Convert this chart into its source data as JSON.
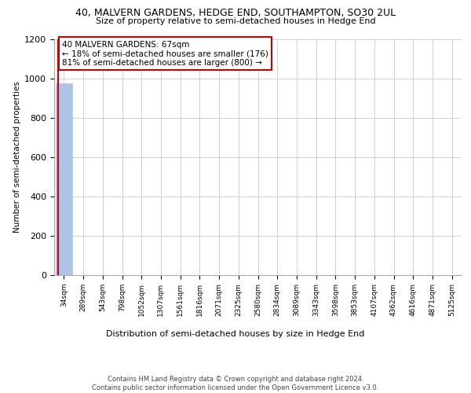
{
  "title_line1": "40, MALVERN GARDENS, HEDGE END, SOUTHAMPTON, SO30 2UL",
  "title_line2": "Size of property relative to semi-detached houses in Hedge End",
  "xlabel": "Distribution of semi-detached houses by size in Hedge End",
  "ylabel": "Number of semi-detached properties",
  "footnote": "Contains HM Land Registry data © Crown copyright and database right 2024.\nContains public sector information licensed under the Open Government Licence v3.0.",
  "annotation_title": "40 MALVERN GARDENS: 67sqm",
  "annotation_line2": "← 18% of semi-detached houses are smaller (176)",
  "annotation_line3": "81% of semi-detached houses are larger (800) →",
  "bar_categories": [
    "34sqm",
    "289sqm",
    "543sqm",
    "798sqm",
    "1052sqm",
    "1307sqm",
    "1561sqm",
    "1816sqm",
    "2071sqm",
    "2325sqm",
    "2580sqm",
    "2834sqm",
    "3089sqm",
    "3343sqm",
    "3598sqm",
    "3853sqm",
    "4107sqm",
    "4362sqm",
    "4616sqm",
    "4871sqm",
    "5125sqm"
  ],
  "bar_values": [
    976,
    0,
    0,
    0,
    0,
    0,
    0,
    0,
    0,
    0,
    0,
    0,
    0,
    0,
    0,
    0,
    0,
    0,
    0,
    0,
    0
  ],
  "bar_color": "#adc6e8",
  "bar_edge_color": "#adc6e8",
  "annotation_border_color": "#cc0000",
  "property_line_color": "#cc0000",
  "ylim_max": 1200,
  "yticks": [
    0,
    200,
    400,
    600,
    800,
    1000,
    1200
  ],
  "background_color": "#ffffff",
  "grid_color": "#d0d0d0",
  "title1_fontsize": 9,
  "title2_fontsize": 8,
  "ylabel_fontsize": 7.5,
  "xlabel_fontsize": 8,
  "footnote_fontsize": 6
}
